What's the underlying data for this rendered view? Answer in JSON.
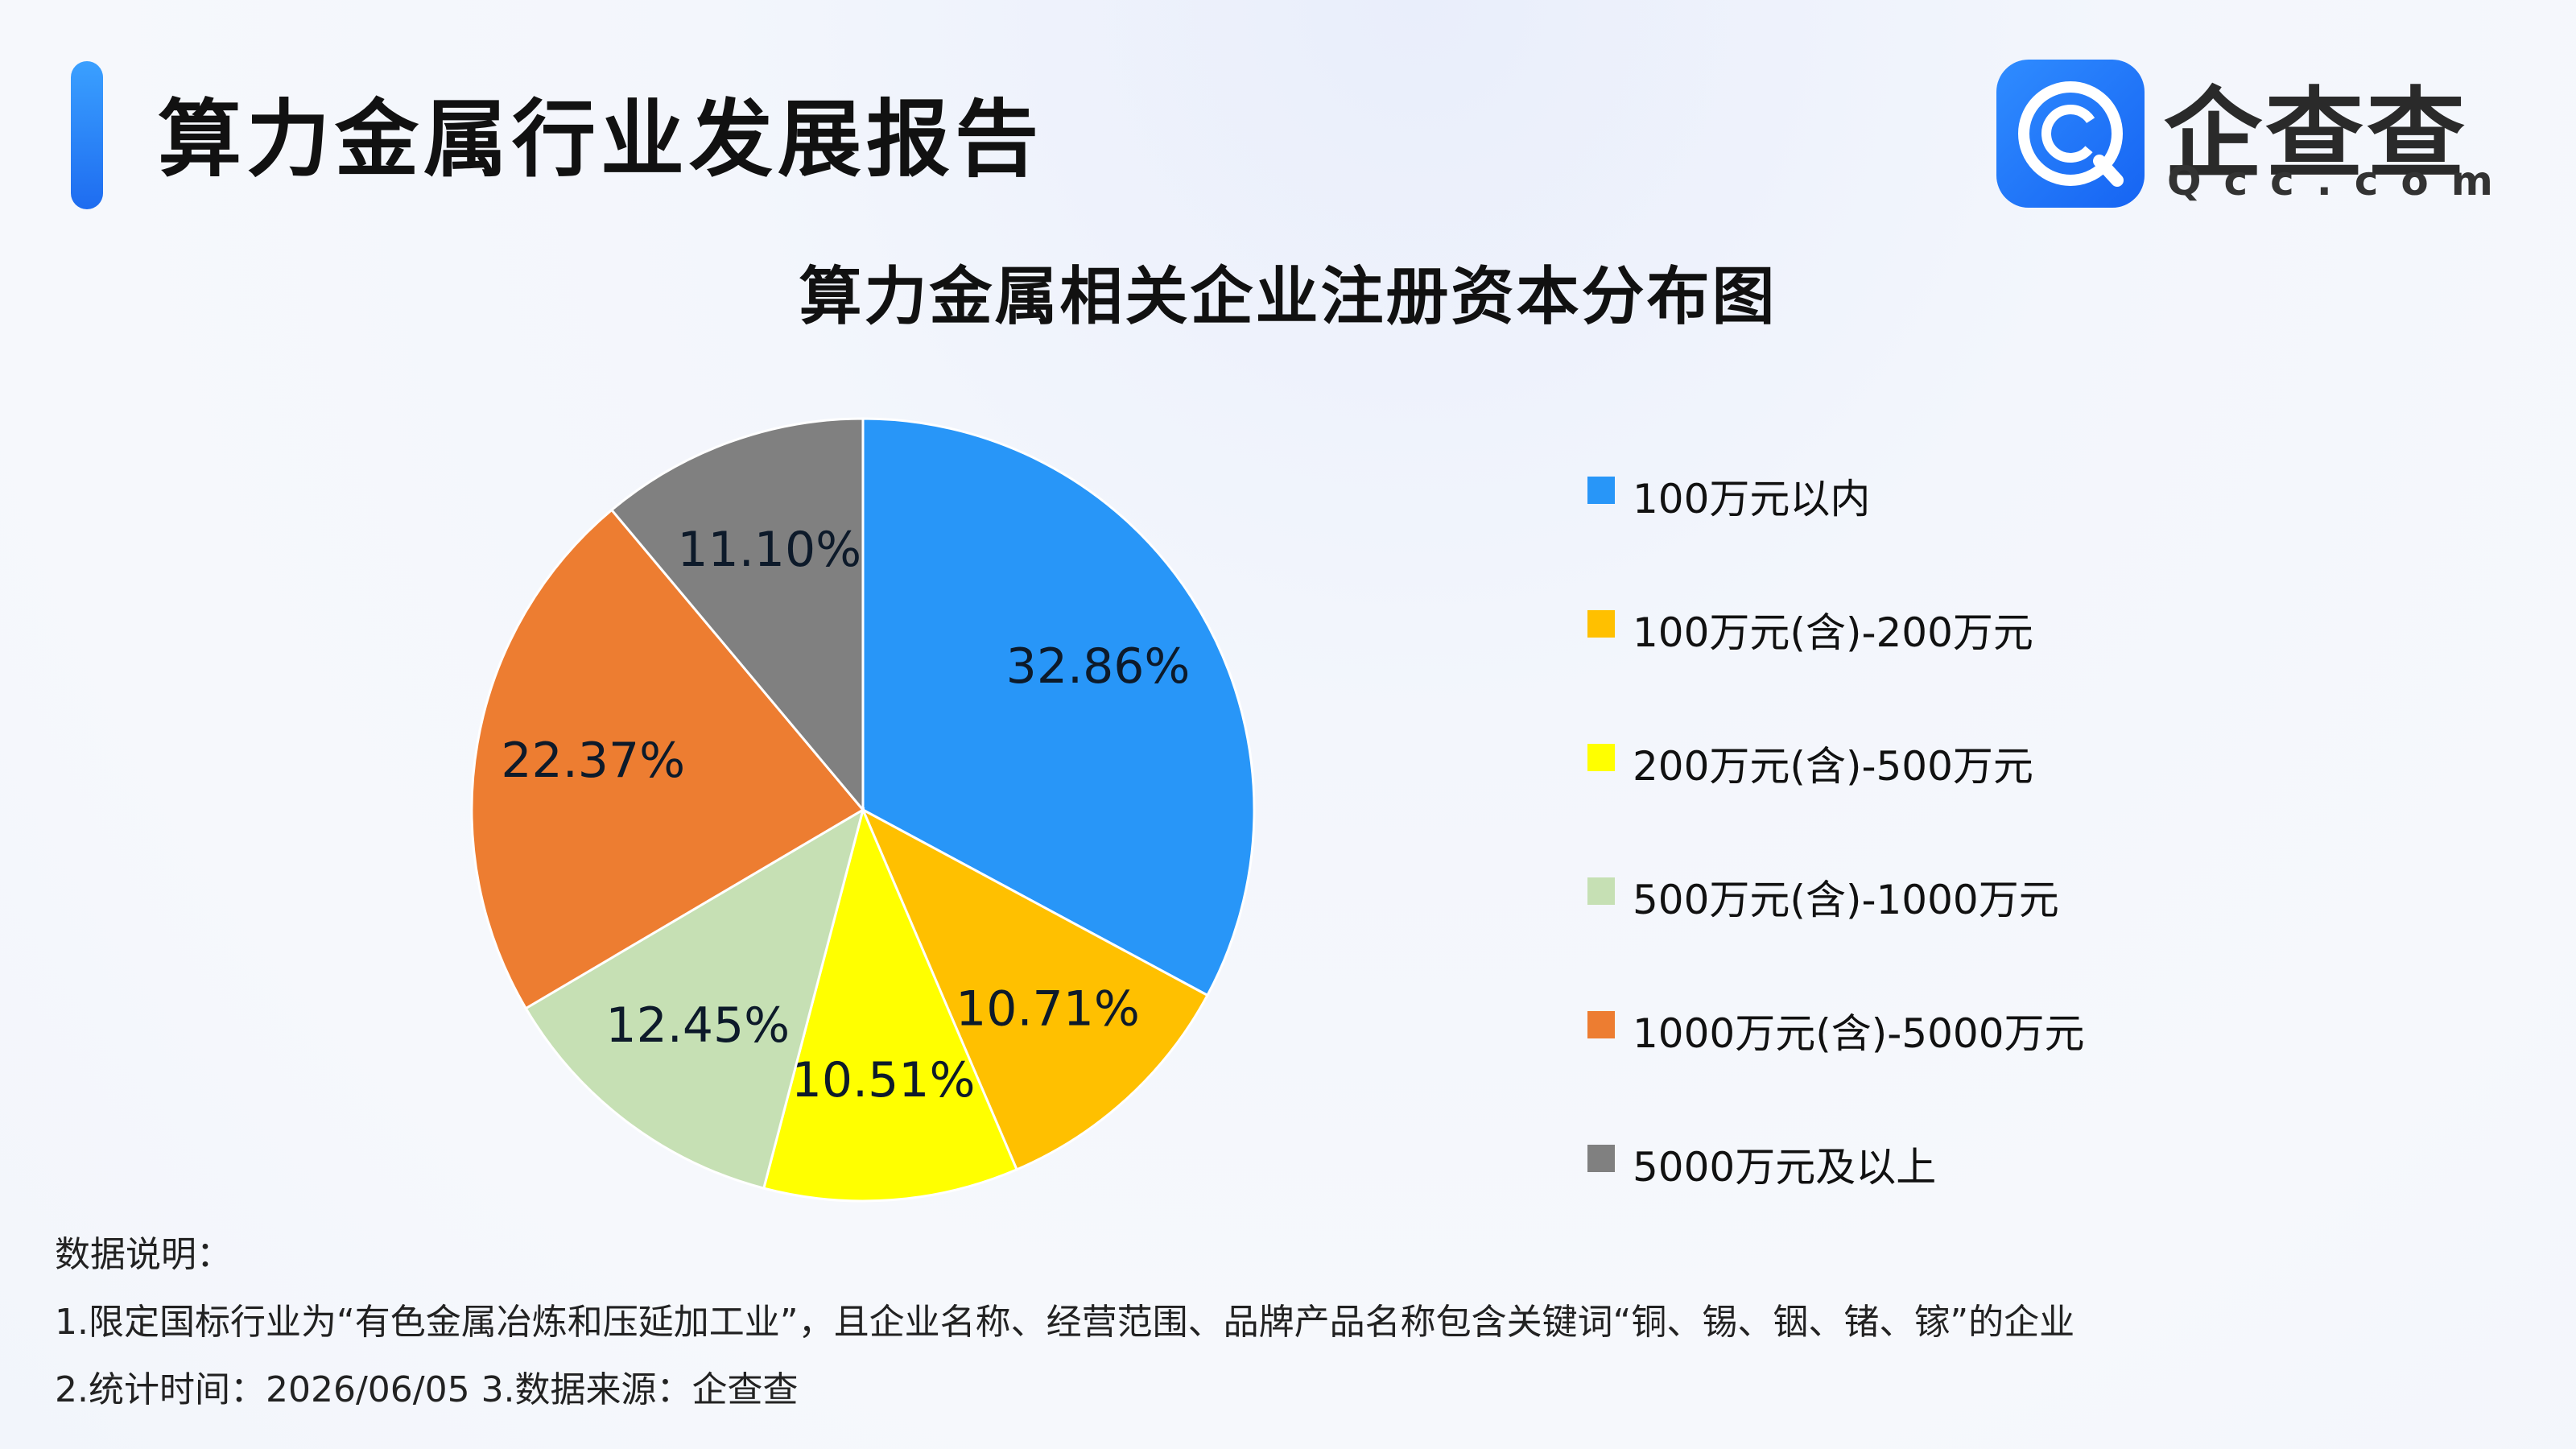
{
  "header": {
    "title": "算力金属行业发展报告",
    "logo_text": "企查查",
    "logo_sub": "Qcc.com"
  },
  "chart_data": {
    "type": "pie",
    "title": "算力金属相关企业注册资本分布图",
    "slices": [
      {
        "label": "100万元以内",
        "value": 32.86,
        "display": "32.86%",
        "color": "#2896f8"
      },
      {
        "label": "100万元(含)-200万元",
        "value": 10.71,
        "display": "10.71%",
        "color": "#ffc000"
      },
      {
        "label": "200万元(含)-500万元",
        "value": 10.51,
        "display": "10.51%",
        "color": "#ffff00"
      },
      {
        "label": "500万元(含)-1000万元",
        "value": 12.45,
        "display": "12.45%",
        "color": "#c6e0b4"
      },
      {
        "label": "1000万元(含)-5000万元",
        "value": 22.37,
        "display": "22.37%",
        "color": "#ed7d31"
      },
      {
        "label": "5000万元及以上",
        "value": 11.1,
        "display": "11.10%",
        "color": "#808080"
      }
    ],
    "legend_position": "right"
  },
  "notes": {
    "heading": "数据说明：",
    "line1": "1.限定国标行业为“有色金属冶炼和压延加工业”，且企业名称、经营范围、品牌产品名称包含关键词“铜、锡、铟、锗、镓”的企业",
    "line2": "2.统计时间：2026/06/05    3.数据来源：企查查"
  }
}
